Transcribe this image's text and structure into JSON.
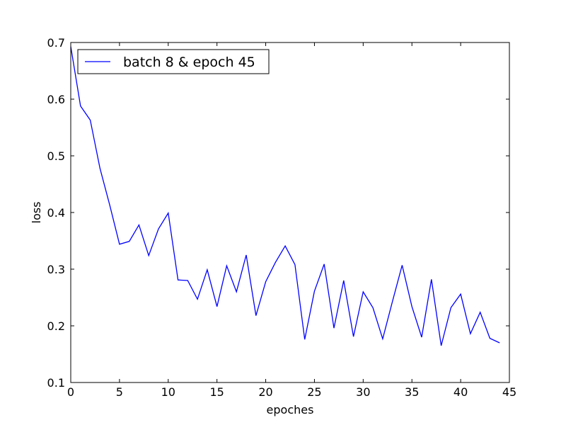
{
  "chart_data": {
    "type": "line",
    "xlabel": "epoches",
    "ylabel": "loss",
    "xlim": [
      0,
      45
    ],
    "ylim": [
      0.1,
      0.7
    ],
    "xticks": [
      "0",
      "5",
      "10",
      "15",
      "20",
      "25",
      "30",
      "35",
      "40",
      "45"
    ],
    "yticks": [
      "0.1",
      "0.2",
      "0.3",
      "0.4",
      "0.5",
      "0.6",
      "0.7"
    ],
    "grid": false,
    "legend_position": "top-left",
    "series": [
      {
        "name": "batch 8 & epoch 45",
        "color": "#0000ff",
        "x": [
          0,
          1,
          2,
          3,
          4,
          5,
          6,
          7,
          8,
          9,
          10,
          11,
          12,
          13,
          14,
          15,
          16,
          17,
          18,
          19,
          20,
          21,
          22,
          23,
          24,
          25,
          26,
          27,
          28,
          29,
          30,
          31,
          32,
          33,
          34,
          35,
          36,
          37,
          38,
          39,
          40,
          41,
          42,
          43,
          44
        ],
        "values": [
          0.693,
          0.588,
          0.563,
          0.478,
          0.413,
          0.344,
          0.349,
          0.378,
          0.324,
          0.371,
          0.399,
          0.281,
          0.28,
          0.247,
          0.299,
          0.234,
          0.306,
          0.26,
          0.325,
          0.218,
          0.278,
          0.312,
          0.341,
          0.308,
          0.176,
          0.261,
          0.309,
          0.196,
          0.28,
          0.181,
          0.26,
          0.232,
          0.177,
          0.243,
          0.307,
          0.234,
          0.18,
          0.282,
          0.165,
          0.232,
          0.256,
          0.186,
          0.224,
          0.178,
          0.17
        ]
      }
    ]
  }
}
